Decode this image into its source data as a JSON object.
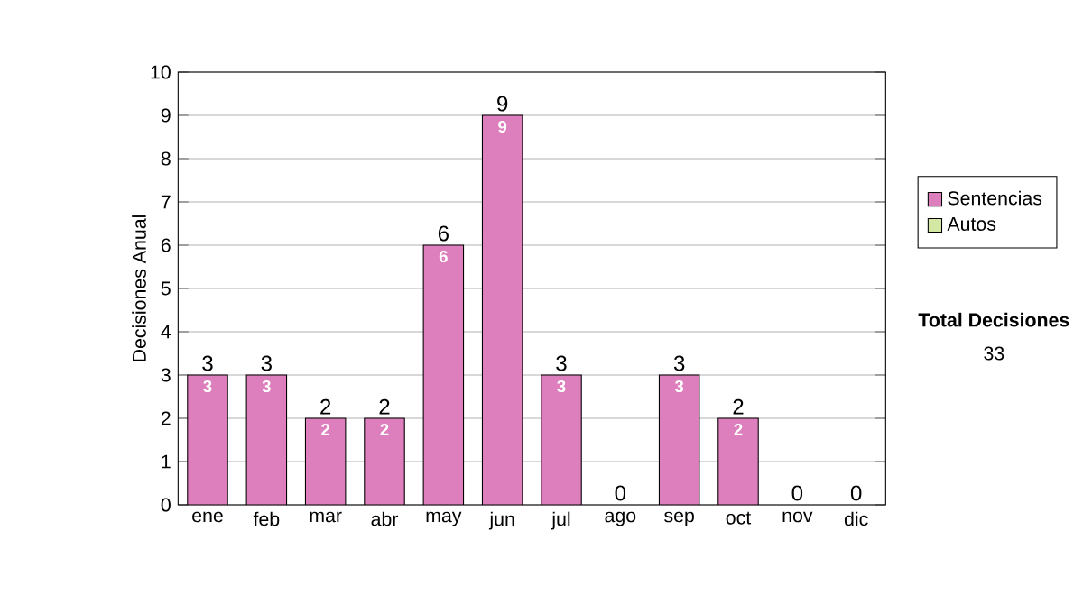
{
  "chart_data": {
    "type": "bar",
    "stacked": true,
    "ylabel": "Decisiones Anual",
    "categories": [
      "ene",
      "feb",
      "mar",
      "abr",
      "may",
      "jun",
      "jul",
      "ago",
      "sep",
      "oct",
      "nov",
      "dic"
    ],
    "series": [
      {
        "name": "Sentencias",
        "color": "#dd7fbd",
        "values": [
          3,
          3,
          2,
          2,
          6,
          9,
          3,
          0,
          3,
          2,
          0,
          0
        ],
        "value_labels": [
          "3",
          "3",
          "2",
          "2",
          "6",
          "9",
          "3",
          null,
          "3",
          "2",
          null,
          null
        ]
      },
      {
        "name": "Autos",
        "color": "#d4e8a4",
        "values": [
          0,
          0,
          0,
          0,
          0,
          0,
          0,
          0,
          0,
          0,
          0,
          0
        ]
      }
    ],
    "totals": [
      "3",
      "3",
      "2",
      "2",
      "6",
      "9",
      "3",
      "0",
      "3",
      "2",
      "0",
      "0"
    ],
    "ylim": [
      0,
      10
    ],
    "yticks": [
      0,
      1,
      2,
      3,
      4,
      5,
      6,
      7,
      8,
      9,
      10
    ],
    "grid": "y",
    "legend": "right",
    "annotations": [
      "Total Decisiones",
      "33"
    ]
  }
}
